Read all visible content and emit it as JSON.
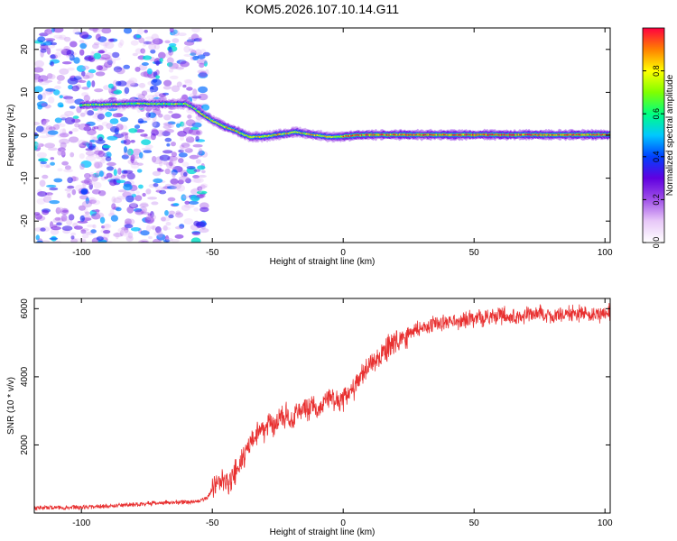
{
  "title": "KOM5.2026.107.10.14.G11",
  "chart_data": [
    {
      "type": "heatmap",
      "xlabel": "Height of straight line (km)",
      "ylabel": "Frequency (Hz)",
      "xlim": [
        -118,
        102
      ],
      "ylim": [
        -25,
        25
      ],
      "x_ticks": [
        -100,
        -50,
        0,
        50,
        100
      ],
      "y_ticks": [
        -20,
        -10,
        0,
        10,
        20
      ],
      "grid": false,
      "colorbar": {
        "label": "Normalized spectral amplitude",
        "range": [
          0,
          1
        ],
        "ticks": [
          0.0,
          0.2,
          0.4,
          0.6,
          0.8
        ],
        "colormap": [
          "#ffffff",
          "#e8c8f8",
          "#a050e8",
          "#6000e0",
          "#0040ff",
          "#00c8ff",
          "#00ff80",
          "#80ff00",
          "#ffff00",
          "#ff8000",
          "#ff0040"
        ]
      },
      "ridge": {
        "x": [
          -100,
          -90,
          -80,
          -70,
          -60,
          -57,
          -55,
          -50,
          -45,
          -40,
          -37,
          -35,
          -30,
          -25,
          -20,
          -18,
          -15,
          -10,
          -5,
          0,
          5,
          10,
          20,
          40,
          60,
          80,
          102
        ],
        "y": [
          7,
          7.2,
          7.4,
          7.3,
          7.3,
          6.5,
          5.5,
          3.5,
          2,
          0.8,
          0,
          -0.4,
          -0.3,
          0.1,
          0.5,
          0.8,
          0.4,
          0,
          -0.4,
          -0.3,
          0,
          0.1,
          0.1,
          0.1,
          0.1,
          0.1,
          0.1
        ]
      }
    },
    {
      "type": "line",
      "xlabel": "Height of straight line (km)",
      "ylabel": "SNR (10 * v/v)",
      "xlim": [
        -118,
        102
      ],
      "ylim": [
        0,
        6300
      ],
      "x_ticks": [
        -100,
        -50,
        0,
        50,
        100
      ],
      "y_ticks": [
        2000,
        4000,
        6000
      ],
      "grid": false,
      "series": [
        {
          "color": "#e83030",
          "x": [
            -118,
            -110,
            -100,
            -90,
            -80,
            -70,
            -60,
            -55,
            -52,
            -50,
            -48,
            -46,
            -44,
            -42,
            -40,
            -38,
            -36,
            -34,
            -32,
            -30,
            -28,
            -26,
            -24,
            -22,
            -20,
            -18,
            -16,
            -14,
            -12,
            -10,
            -8,
            -6,
            -4,
            -2,
            0,
            2,
            4,
            6,
            8,
            10,
            12,
            14,
            16,
            18,
            20,
            22,
            24,
            26,
            28,
            30,
            35,
            40,
            45,
            50,
            55,
            60,
            65,
            70,
            75,
            80,
            85,
            90,
            95,
            100,
            102
          ],
          "values": [
            150,
            160,
            170,
            200,
            250,
            300,
            320,
            350,
            450,
            700,
            850,
            1000,
            800,
            1100,
            1300,
            1600,
            2000,
            2200,
            2500,
            2400,
            2700,
            2600,
            2800,
            2900,
            2800,
            2900,
            3000,
            3100,
            3050,
            3000,
            3200,
            3300,
            3250,
            3300,
            3250,
            3500,
            3650,
            3900,
            4100,
            4300,
            4450,
            4600,
            4750,
            4900,
            5000,
            5100,
            5200,
            5300,
            5400,
            5450,
            5550,
            5600,
            5650,
            5700,
            5750,
            5800,
            5780,
            5800,
            5850,
            5800,
            5850,
            5850,
            5800,
            5850,
            5900
          ]
        }
      ]
    }
  ]
}
